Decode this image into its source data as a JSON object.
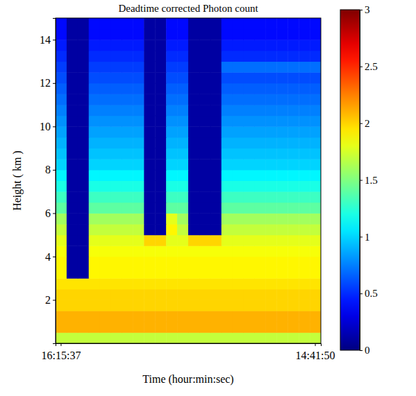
{
  "chart_data": {
    "type": "heatmap",
    "title": "Deadtime corrected Photon count",
    "x_label": "Time (hour:min:sec)",
    "y_label": "Height ( km )",
    "categories": [
      "16:15:37",
      null,
      null,
      null,
      null,
      null,
      null,
      null,
      null,
      null,
      null,
      null,
      null,
      null,
      null,
      null,
      null,
      null,
      null,
      null,
      null,
      null,
      null,
      "14:41:50"
    ],
    "y_bins": [
      0,
      0.5,
      1,
      1.5,
      2,
      2.5,
      3,
      3.5,
      4,
      4.5,
      5,
      5.5,
      6,
      6.5,
      7,
      7.5,
      8,
      8.5,
      9,
      9.5,
      10,
      10.5,
      11,
      11.5,
      12,
      12.5,
      13,
      13.5,
      14,
      14.5,
      15
    ],
    "ylim": [
      0,
      15
    ],
    "yticks": [
      2,
      4,
      6,
      8,
      10,
      12,
      14
    ],
    "z": [
      [
        1.7,
        1.7,
        1.7,
        1.7,
        1.7,
        1.7,
        1.7,
        1.7,
        1.7,
        1.7,
        1.7,
        1.7,
        1.7,
        1.7,
        1.7,
        1.7,
        1.7,
        1.7,
        1.7,
        1.7,
        1.7,
        1.7,
        1.7,
        1.7
      ],
      [
        2.1,
        2.1,
        2.1,
        2.1,
        2.1,
        2.1,
        2.1,
        2.1,
        2.1,
        2.1,
        2.1,
        2.1,
        2.1,
        2.1,
        2.1,
        2.1,
        2.1,
        2.1,
        2.1,
        2.1,
        2.1,
        2.1,
        2.1,
        2.1
      ],
      [
        2.1,
        2.1,
        2.1,
        2.1,
        2.1,
        2.1,
        2.1,
        2.1,
        2.1,
        2.1,
        2.1,
        2.1,
        2.1,
        2.1,
        2.1,
        2.1,
        2.1,
        2.1,
        2.1,
        2.1,
        2.1,
        2.1,
        2.1,
        2.1
      ],
      [
        2.0,
        2.0,
        2.0,
        2.0,
        2.0,
        2.0,
        2.0,
        2.0,
        2.0,
        2.0,
        2.0,
        2.0,
        2.0,
        2.0,
        2.0,
        2.0,
        2.0,
        2.0,
        2.0,
        2.0,
        2.0,
        2.0,
        2.0,
        2.0
      ],
      [
        2.0,
        2.0,
        2.0,
        2.0,
        2.0,
        2.0,
        2.0,
        2.0,
        2.0,
        2.0,
        2.0,
        2.0,
        2.0,
        2.0,
        2.0,
        2.0,
        2.0,
        2.0,
        2.0,
        2.0,
        2.0,
        2.0,
        2.0,
        2.0
      ],
      [
        1.95,
        1.95,
        1.95,
        1.95,
        1.95,
        1.95,
        1.95,
        1.95,
        1.95,
        1.95,
        1.95,
        1.95,
        1.95,
        1.95,
        1.95,
        1.95,
        1.95,
        1.95,
        1.95,
        1.95,
        1.95,
        1.95,
        1.95,
        1.95
      ],
      [
        1.9,
        0.1,
        0.1,
        1.9,
        1.9,
        1.9,
        1.9,
        1.9,
        1.9,
        1.9,
        1.9,
        1.9,
        1.9,
        1.9,
        1.9,
        1.9,
        1.9,
        1.9,
        1.9,
        1.9,
        1.9,
        1.9,
        1.9,
        1.9
      ],
      [
        1.9,
        0.1,
        0.1,
        1.9,
        1.9,
        1.9,
        1.9,
        1.9,
        1.9,
        1.9,
        1.9,
        1.9,
        1.9,
        1.9,
        1.9,
        1.9,
        1.9,
        1.9,
        1.9,
        1.9,
        1.9,
        1.9,
        1.9,
        1.9
      ],
      [
        1.85,
        0.1,
        0.1,
        1.85,
        1.85,
        1.85,
        1.85,
        1.85,
        1.85,
        1.85,
        1.85,
        1.85,
        1.85,
        1.85,
        1.85,
        1.85,
        1.85,
        1.85,
        1.85,
        1.85,
        1.85,
        1.85,
        1.85,
        1.85
      ],
      [
        1.8,
        0.1,
        0.1,
        1.8,
        1.8,
        1.8,
        1.8,
        1.8,
        2.0,
        2.0,
        1.8,
        1.8,
        2.0,
        2.0,
        2.0,
        1.8,
        1.8,
        1.8,
        1.8,
        1.8,
        1.8,
        1.8,
        1.8,
        1.8
      ],
      [
        1.7,
        0.1,
        0.1,
        1.7,
        1.7,
        1.7,
        1.7,
        1.7,
        0.1,
        0.1,
        1.9,
        1.7,
        0.1,
        0.1,
        0.1,
        1.7,
        1.7,
        1.7,
        1.7,
        1.7,
        1.7,
        1.7,
        1.7,
        1.7
      ],
      [
        1.6,
        0.1,
        0.1,
        1.6,
        1.6,
        1.6,
        1.6,
        1.6,
        0.1,
        0.1,
        1.8,
        1.6,
        0.1,
        0.1,
        0.1,
        1.6,
        1.6,
        1.6,
        1.6,
        1.6,
        1.6,
        1.6,
        1.6,
        1.6
      ],
      [
        1.4,
        0.1,
        0.1,
        1.4,
        1.4,
        1.4,
        1.4,
        1.4,
        0.1,
        0.1,
        1.4,
        1.4,
        0.1,
        0.1,
        0.1,
        1.4,
        1.4,
        1.4,
        1.4,
        1.4,
        1.4,
        1.4,
        1.4,
        1.4
      ],
      [
        1.3,
        0.1,
        0.1,
        1.3,
        1.3,
        1.3,
        1.3,
        1.3,
        0.1,
        0.1,
        1.3,
        1.3,
        0.1,
        0.1,
        0.1,
        1.3,
        1.3,
        1.3,
        1.3,
        1.3,
        1.3,
        1.3,
        1.3,
        1.3
      ],
      [
        1.2,
        0.1,
        0.1,
        1.2,
        1.2,
        1.2,
        1.2,
        1.2,
        0.1,
        0.1,
        1.2,
        1.2,
        0.1,
        0.1,
        0.1,
        1.2,
        1.2,
        1.2,
        1.2,
        1.2,
        1.2,
        1.2,
        1.2,
        1.2
      ],
      [
        1.1,
        0.1,
        0.1,
        1.1,
        1.1,
        1.1,
        1.1,
        1.1,
        0.1,
        0.1,
        1.1,
        1.1,
        0.1,
        0.1,
        0.1,
        1.1,
        1.1,
        1.1,
        1.1,
        1.1,
        1.1,
        1.1,
        1.1,
        1.1
      ],
      [
        1.0,
        0.1,
        0.1,
        1.0,
        1.0,
        1.0,
        1.0,
        1.0,
        0.1,
        0.1,
        1.0,
        1.0,
        0.1,
        0.1,
        0.1,
        1.0,
        1.0,
        1.0,
        1.0,
        1.0,
        1.0,
        1.0,
        1.0,
        1.0
      ],
      [
        0.95,
        0.1,
        0.1,
        0.95,
        0.95,
        0.95,
        0.95,
        0.95,
        0.1,
        0.1,
        0.95,
        0.95,
        0.1,
        0.1,
        0.1,
        0.95,
        0.95,
        0.95,
        0.95,
        0.95,
        0.95,
        0.95,
        0.95,
        0.95
      ],
      [
        0.9,
        0.1,
        0.1,
        0.9,
        0.9,
        0.9,
        0.9,
        0.9,
        0.1,
        0.1,
        0.9,
        0.9,
        0.1,
        0.1,
        0.1,
        0.9,
        0.9,
        0.9,
        0.9,
        0.9,
        0.9,
        0.9,
        0.9,
        0.9
      ],
      [
        0.85,
        0.1,
        0.1,
        0.85,
        0.85,
        0.85,
        0.85,
        0.85,
        0.1,
        0.1,
        0.85,
        0.85,
        0.1,
        0.1,
        0.1,
        0.85,
        0.85,
        0.85,
        0.85,
        0.85,
        0.85,
        0.85,
        0.85,
        0.85
      ],
      [
        0.8,
        0.1,
        0.1,
        0.8,
        0.8,
        0.8,
        0.8,
        0.8,
        0.1,
        0.1,
        0.8,
        0.8,
        0.1,
        0.1,
        0.1,
        0.8,
        0.8,
        0.8,
        0.8,
        0.8,
        0.8,
        0.8,
        0.8,
        0.8
      ],
      [
        0.75,
        0.1,
        0.1,
        0.75,
        0.75,
        0.75,
        0.75,
        0.75,
        0.1,
        0.1,
        0.75,
        0.75,
        0.1,
        0.1,
        0.1,
        0.75,
        0.75,
        0.75,
        0.75,
        0.75,
        0.75,
        0.75,
        0.75,
        0.75
      ],
      [
        0.7,
        0.1,
        0.1,
        0.7,
        0.7,
        0.7,
        0.7,
        0.7,
        0.1,
        0.1,
        0.7,
        0.7,
        0.1,
        0.1,
        0.1,
        0.7,
        0.7,
        0.7,
        0.7,
        0.7,
        0.7,
        0.7,
        0.7,
        0.7
      ],
      [
        0.65,
        0.1,
        0.1,
        0.65,
        0.65,
        0.65,
        0.65,
        0.65,
        0.1,
        0.1,
        0.65,
        0.65,
        0.1,
        0.1,
        0.1,
        0.65,
        0.65,
        0.65,
        0.65,
        0.65,
        0.65,
        0.65,
        0.65,
        0.65
      ],
      [
        0.6,
        0.1,
        0.1,
        0.6,
        0.6,
        0.6,
        0.6,
        0.6,
        0.1,
        0.1,
        0.6,
        0.6,
        0.1,
        0.1,
        0.1,
        0.6,
        0.6,
        0.6,
        0.6,
        0.6,
        0.6,
        0.6,
        0.6,
        0.6
      ],
      [
        0.55,
        0.1,
        0.1,
        0.55,
        0.55,
        0.55,
        0.55,
        0.55,
        0.1,
        0.1,
        0.55,
        0.55,
        0.1,
        0.1,
        0.1,
        0.7,
        0.7,
        0.7,
        0.7,
        0.7,
        0.7,
        0.7,
        0.7,
        0.7
      ],
      [
        0.5,
        0.1,
        0.1,
        0.5,
        0.5,
        0.5,
        0.5,
        0.5,
        0.1,
        0.1,
        0.5,
        0.5,
        0.1,
        0.1,
        0.1,
        0.5,
        0.5,
        0.5,
        0.5,
        0.5,
        0.5,
        0.5,
        0.5,
        0.5
      ],
      [
        0.45,
        0.1,
        0.1,
        0.45,
        0.45,
        0.45,
        0.45,
        0.45,
        0.1,
        0.1,
        0.45,
        0.45,
        0.1,
        0.1,
        0.1,
        0.45,
        0.45,
        0.45,
        0.45,
        0.45,
        0.45,
        0.45,
        0.45,
        0.45
      ],
      [
        0.4,
        0.1,
        0.1,
        0.4,
        0.4,
        0.4,
        0.4,
        0.4,
        0.1,
        0.1,
        0.4,
        0.4,
        0.1,
        0.1,
        0.1,
        0.4,
        0.4,
        0.4,
        0.4,
        0.4,
        0.4,
        0.4,
        0.4,
        0.4
      ],
      [
        0.4,
        0.1,
        0.1,
        0.4,
        0.4,
        0.4,
        0.4,
        0.4,
        0.1,
        0.1,
        0.4,
        0.4,
        0.1,
        0.1,
        0.1,
        0.4,
        0.4,
        0.4,
        0.4,
        0.4,
        0.4,
        0.4,
        0.4,
        0.4
      ]
    ],
    "colorbar": {
      "range": [
        0,
        3
      ],
      "ticks": [
        0,
        0.5,
        1,
        1.5,
        2,
        2.5,
        3
      ]
    }
  }
}
